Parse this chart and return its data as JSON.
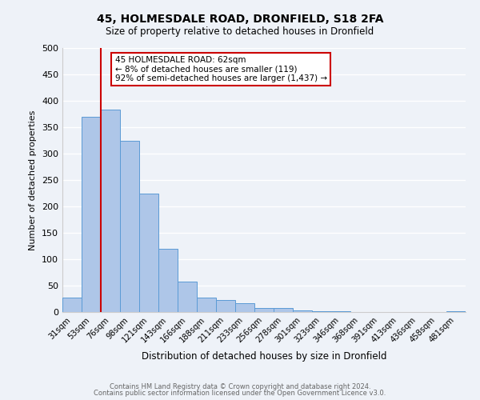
{
  "title1": "45, HOLMESDALE ROAD, DRONFIELD, S18 2FA",
  "title2": "Size of property relative to detached houses in Dronfield",
  "xlabel": "Distribution of detached houses by size in Dronfield",
  "ylabel": "Number of detached properties",
  "bin_labels": [
    "31sqm",
    "53sqm",
    "76sqm",
    "98sqm",
    "121sqm",
    "143sqm",
    "166sqm",
    "188sqm",
    "211sqm",
    "233sqm",
    "256sqm",
    "278sqm",
    "301sqm",
    "323sqm",
    "346sqm",
    "368sqm",
    "391sqm",
    "413sqm",
    "436sqm",
    "458sqm",
    "481sqm"
  ],
  "bar_values": [
    27,
    370,
    383,
    325,
    225,
    120,
    58,
    27,
    22,
    17,
    7,
    7,
    3,
    1,
    1,
    0,
    0,
    0,
    0,
    0,
    2
  ],
  "bar_color": "#aec6e8",
  "bar_edge_color": "#5b9bd5",
  "vline_color": "#cc0000",
  "ylim": [
    0,
    500
  ],
  "yticks": [
    0,
    50,
    100,
    150,
    200,
    250,
    300,
    350,
    400,
    450,
    500
  ],
  "annotation_title": "45 HOLMESDALE ROAD: 62sqm",
  "annotation_line1": "← 8% of detached houses are smaller (119)",
  "annotation_line2": "92% of semi-detached houses are larger (1,437) →",
  "annotation_box_color": "#ffffff",
  "annotation_box_edge": "#cc0000",
  "footer1": "Contains HM Land Registry data © Crown copyright and database right 2024.",
  "footer2": "Contains public sector information licensed under the Open Government Licence v3.0.",
  "bg_color": "#eef2f8",
  "grid_color": "#ffffff"
}
